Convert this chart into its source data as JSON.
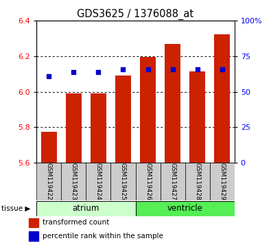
{
  "title": "GDS3625 / 1376088_at",
  "samples": [
    "GSM119422",
    "GSM119423",
    "GSM119424",
    "GSM119425",
    "GSM119426",
    "GSM119427",
    "GSM119428",
    "GSM119429"
  ],
  "bar_values": [
    5.775,
    5.99,
    5.99,
    6.09,
    6.195,
    6.268,
    6.115,
    6.325
  ],
  "bar_base": 5.6,
  "percentile_ranks": [
    61,
    64,
    64,
    66,
    66,
    66,
    66,
    66
  ],
  "ylim_left": [
    5.6,
    6.4
  ],
  "ylim_right": [
    0,
    100
  ],
  "yticks_left": [
    5.6,
    5.8,
    6.0,
    6.2,
    6.4
  ],
  "yticks_right": [
    0,
    25,
    50,
    75,
    100
  ],
  "bar_color": "#cc2200",
  "dot_color": "#0000cc",
  "atrium_indices": [
    0,
    1,
    2,
    3
  ],
  "ventricle_indices": [
    4,
    5,
    6,
    7
  ],
  "atrium_color": "#ccffcc",
  "ventricle_color": "#55ee55",
  "tissue_label": "tissue",
  "atrium_label": "atrium",
  "ventricle_label": "ventricle",
  "legend_bar_label": "transformed count",
  "legend_dot_label": "percentile rank within the sample",
  "tick_bg_color": "#cccccc"
}
